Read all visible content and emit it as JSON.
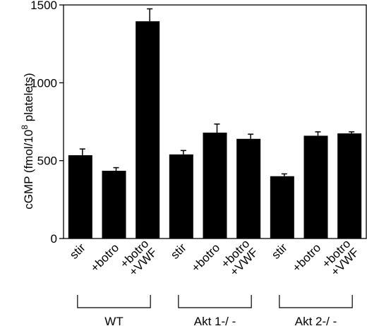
{
  "chart_data": {
    "type": "bar",
    "title": "",
    "ylabel_main": "cGMP (fmol/10",
    "ylabel_sup": "8",
    "ylabel_end": " platelets)",
    "ylim": [
      0,
      1500
    ],
    "yticks": [
      0,
      500,
      1000,
      1500
    ],
    "grid": false,
    "legend": "none",
    "bar_color": "#000000",
    "categories": [
      "stir",
      "+botro",
      "+botro +VWF",
      "stir",
      "+botro",
      "+botro +VWF",
      "stir",
      "+botro",
      "+botro +VWF"
    ],
    "category_lines": [
      [
        "stir"
      ],
      [
        "+botro"
      ],
      [
        "+botro",
        "+VWF"
      ],
      [
        "stir"
      ],
      [
        "+botro"
      ],
      [
        "+botro",
        "+VWF"
      ],
      [
        "stir"
      ],
      [
        "+botro"
      ],
      [
        "+botro",
        "+VWF"
      ]
    ],
    "values": [
      535,
      435,
      1395,
      540,
      680,
      640,
      400,
      660,
      675
    ],
    "errors": [
      40,
      20,
      80,
      25,
      55,
      30,
      15,
      25,
      10
    ],
    "groups": [
      {
        "label": "WT",
        "members": [
          0,
          1,
          2
        ]
      },
      {
        "label": "Akt 1-/ -",
        "members": [
          3,
          4,
          5
        ]
      },
      {
        "label": "Akt 2-/ -",
        "members": [
          6,
          7,
          8
        ]
      }
    ]
  }
}
